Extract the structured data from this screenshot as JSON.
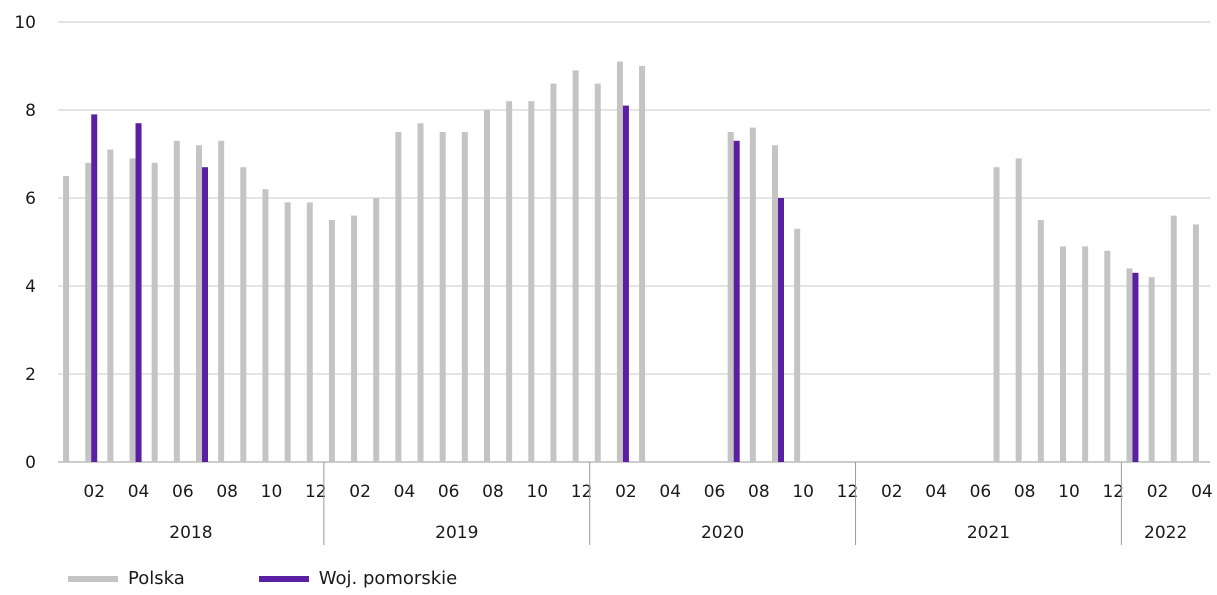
{
  "chart_data": {
    "type": "bar",
    "ylim": [
      0,
      10
    ],
    "yticks": [
      0,
      2,
      4,
      6,
      8,
      10
    ],
    "grid": true,
    "legend_position": "bottom-left",
    "months": [
      "01",
      "02",
      "03",
      "04",
      "05",
      "06",
      "07",
      "08",
      "09",
      "10",
      "11",
      "12",
      "01",
      "02",
      "03",
      "04",
      "05",
      "06",
      "07",
      "08",
      "09",
      "10",
      "11",
      "12",
      "01",
      "02",
      "03",
      "04",
      "05",
      "06",
      "07",
      "08",
      "09",
      "10",
      "11",
      "12",
      "01",
      "02",
      "03",
      "04",
      "05",
      "06",
      "07",
      "08",
      "09",
      "10",
      "11",
      "12",
      "01",
      "02",
      "03",
      "04"
    ],
    "month_tick_labels": [
      "",
      "02",
      "",
      "04",
      "",
      "06",
      "",
      "08",
      "",
      "10",
      "",
      "12",
      "",
      "02",
      "",
      "04",
      "",
      "06",
      "",
      "08",
      "",
      "10",
      "",
      "12",
      "",
      "02",
      "",
      "04",
      "",
      "06",
      "",
      "08",
      "",
      "10",
      "",
      "12",
      "",
      "02",
      "",
      "04",
      "",
      "06",
      "",
      "08",
      "",
      "10",
      "",
      "12",
      "",
      "02",
      "",
      "04"
    ],
    "years": [
      {
        "label": "2018",
        "count": 12
      },
      {
        "label": "2019",
        "count": 12
      },
      {
        "label": "2020",
        "count": 12
      },
      {
        "label": "2021",
        "count": 12
      },
      {
        "label": "2022",
        "count": 4
      }
    ],
    "series": [
      {
        "name": "Polska",
        "color": "#c4c4c4",
        "values": [
          6.5,
          6.8,
          7.1,
          6.9,
          6.8,
          7.3,
          7.2,
          7.3,
          6.7,
          6.2,
          5.9,
          5.9,
          5.5,
          5.6,
          6.0,
          7.5,
          7.7,
          7.5,
          7.5,
          8.0,
          8.2,
          8.2,
          8.6,
          8.9,
          8.6,
          9.1,
          9.0,
          null,
          null,
          null,
          7.5,
          7.6,
          7.2,
          5.3,
          null,
          null,
          null,
          null,
          null,
          null,
          null,
          null,
          6.7,
          6.9,
          5.5,
          4.9,
          4.9,
          4.8,
          4.4,
          4.2,
          5.6,
          5.4
        ]
      },
      {
        "name": "Woj. pomorskie",
        "color": "#5b1fa3",
        "values": [
          null,
          7.9,
          null,
          7.7,
          null,
          null,
          6.7,
          null,
          null,
          null,
          null,
          null,
          null,
          null,
          null,
          null,
          null,
          null,
          null,
          null,
          null,
          null,
          null,
          null,
          null,
          8.1,
          null,
          null,
          null,
          null,
          7.3,
          null,
          6.0,
          null,
          null,
          null,
          null,
          null,
          null,
          null,
          null,
          null,
          null,
          null,
          null,
          null,
          null,
          null,
          4.3,
          null,
          null,
          null
        ]
      }
    ]
  }
}
